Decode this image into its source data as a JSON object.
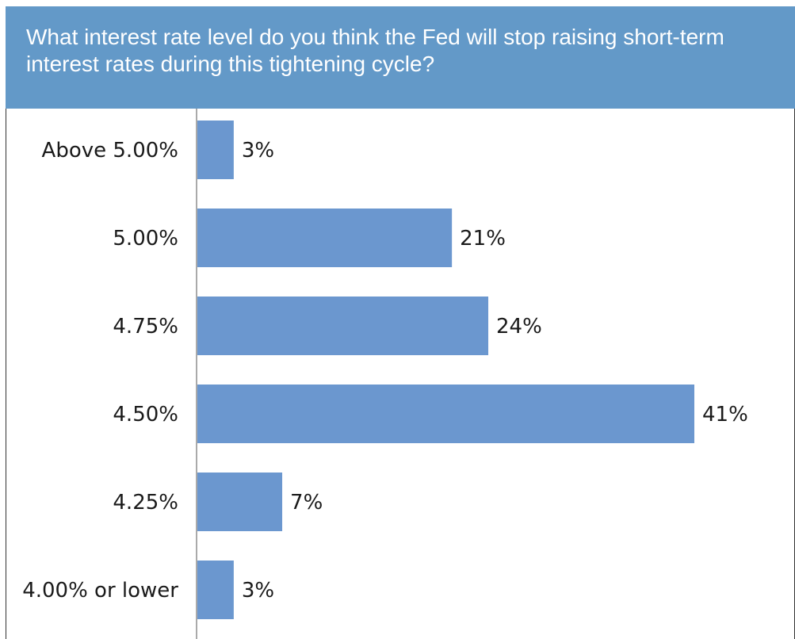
{
  "chart_data": {
    "type": "bar",
    "orientation": "horizontal",
    "title": "What interest rate level do you think the Fed will stop raising short-term interest rates during this tightening cycle?",
    "categories": [
      "Above 5.00%",
      "5.00%",
      "4.75%",
      "4.50%",
      "4.25%",
      "4.00% or lower"
    ],
    "values": [
      3,
      21,
      24,
      41,
      7,
      3
    ],
    "value_labels": [
      "3%",
      "21%",
      "24%",
      "41%",
      "7%",
      "3%"
    ],
    "xlim": [
      0,
      41
    ],
    "grid": false,
    "legend": "none",
    "colors": {
      "bar": "#6b97cf",
      "header": "#6399c8",
      "text": "#1a1a1a"
    }
  }
}
